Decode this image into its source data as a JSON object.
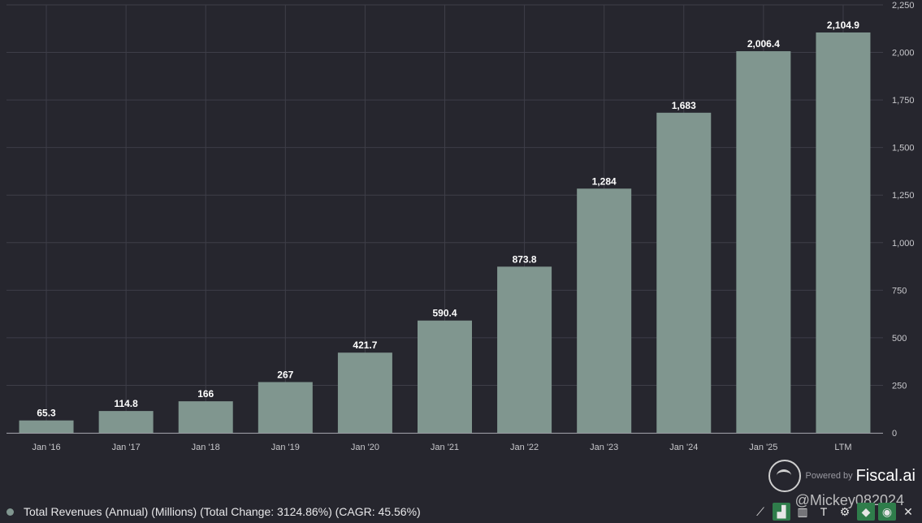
{
  "chart_data": {
    "type": "bar",
    "title": "",
    "categories": [
      "Jan '16",
      "Jan '17",
      "Jan '18",
      "Jan '19",
      "Jan '20",
      "Jan '21",
      "Jan '22",
      "Jan '23",
      "Jan '24",
      "Jan '25",
      "LTM"
    ],
    "values": [
      65.3,
      114.8,
      166,
      267,
      421.7,
      590.4,
      873.8,
      1284,
      1683,
      2006.4,
      2104.9
    ],
    "value_labels": [
      "65.3",
      "114.8",
      "166",
      "267",
      "421.7",
      "590.4",
      "873.8",
      "1,284",
      "1,683",
      "2,006.4",
      "2,104.9"
    ],
    "ylim": [
      0,
      2250
    ],
    "yticks": [
      0,
      250,
      500,
      750,
      1000,
      1250,
      1500,
      1750,
      2000,
      2250
    ],
    "ytick_labels": [
      "0",
      "250",
      "500",
      "750",
      "1,000",
      "1,250",
      "1,500",
      "1,750",
      "2,000",
      "2,250"
    ],
    "xlabel": "",
    "ylabel": "",
    "grid": true,
    "y_axis_side": "right",
    "colors": {
      "bar": "#80968f",
      "background": "#26262e",
      "grid": "#3e3e48",
      "tick": "#c8c8cc",
      "label": "#ffffff"
    }
  },
  "legend": {
    "text": "Total Revenues (Annual) (Millions) (Total Change: 3124.86%) (CAGR: 45.56%)",
    "dot_color": "#80968f"
  },
  "brand": {
    "powered_by": "Powered by",
    "name": "Fiscal.ai",
    "watermark": "@Mickey082024"
  },
  "toolbar": {
    "items": [
      {
        "icon": "line-chart-icon",
        "glyph": "⟋"
      },
      {
        "icon": "bar-chart-icon",
        "glyph": "▟"
      },
      {
        "icon": "bar-grouped-icon",
        "glyph": "▥"
      },
      {
        "icon": "text-icon",
        "glyph": "T"
      },
      {
        "icon": "gear-icon",
        "glyph": "⚙"
      },
      {
        "icon": "tag-icon",
        "glyph": "◆"
      },
      {
        "icon": "eye-icon",
        "glyph": "◉"
      },
      {
        "icon": "close-icon",
        "glyph": "✕"
      }
    ]
  }
}
